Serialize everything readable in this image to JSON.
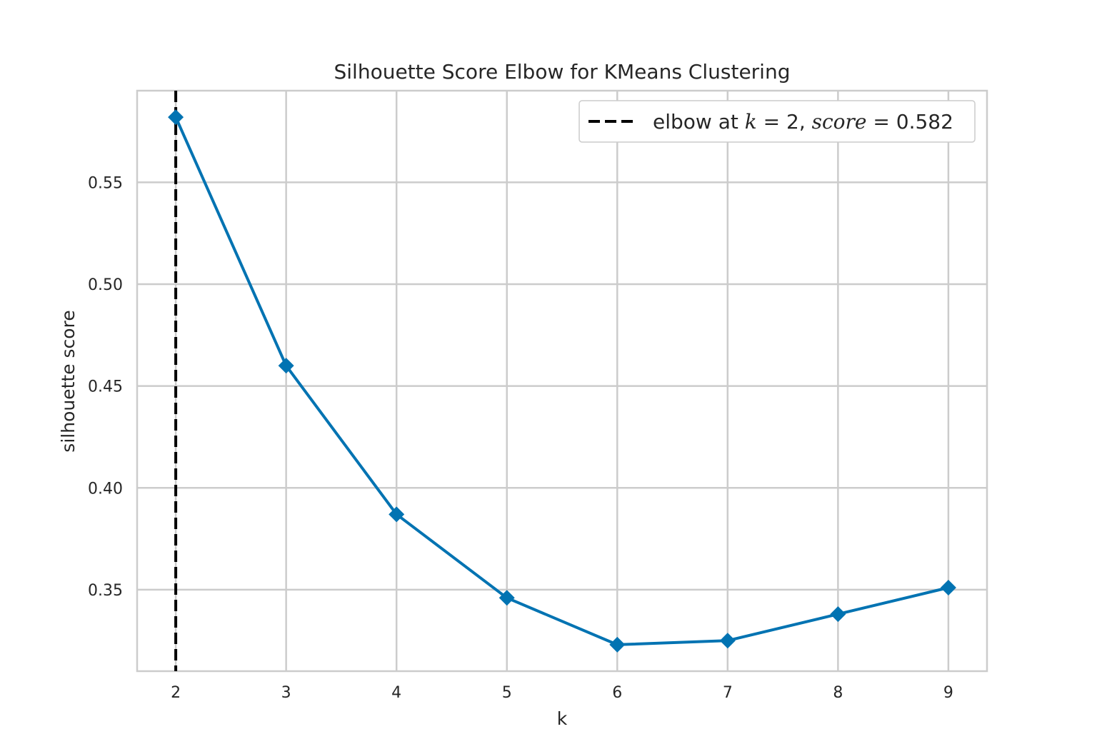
{
  "chart_data": {
    "type": "line",
    "title": "Silhouette Score Elbow for KMeans Clustering",
    "xlabel": "k",
    "ylabel": "silhouette score",
    "x": [
      2,
      3,
      4,
      5,
      6,
      7,
      8,
      9
    ],
    "series": [
      {
        "values": [
          0.582,
          0.46,
          0.387,
          0.346,
          0.323,
          0.325,
          0.338,
          0.351
        ],
        "color": "#0173b2",
        "marker": "diamond"
      }
    ],
    "xlim": [
      1.65,
      9.35
    ],
    "ylim": [
      0.31,
      0.595
    ],
    "xticks": [
      2,
      3,
      4,
      5,
      6,
      7,
      8,
      9
    ],
    "yticks": [
      0.35,
      0.4,
      0.45,
      0.5,
      0.55
    ],
    "ytick_labels": [
      "0.35",
      "0.40",
      "0.45",
      "0.50",
      "0.55"
    ],
    "grid": true,
    "elbow": {
      "k": 2,
      "score": 0.582,
      "color": "#000000",
      "style": "dashed"
    },
    "legend": {
      "position": "top-right",
      "prefix": "elbow at ",
      "k_var": "k",
      "eq": " = ",
      "k_val": "2",
      "sep": ", ",
      "score_var": "score",
      "score_val": "0.582"
    }
  }
}
